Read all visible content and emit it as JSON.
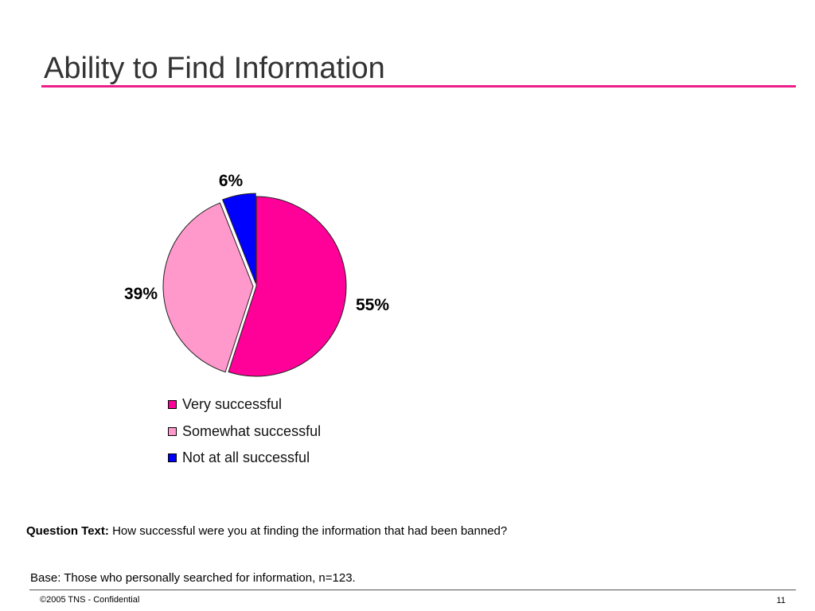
{
  "slide": {
    "title": "Ability to Find Information",
    "accent_color": "#ee1d8c",
    "question_label": "Question Text:",
    "question_text": "How successful were you at finding the information that had been banned?",
    "base_text": "Base: Those who personally searched for information, n=123.",
    "footer_left": "©2005 TNS - Confidential",
    "page_number": "11"
  },
  "chart_data": {
    "type": "pie",
    "title": "",
    "legend_position": "bottom",
    "slices": [
      {
        "name": "Very successful",
        "value": 55,
        "label": "55%",
        "color": "#ff0099"
      },
      {
        "name": "Somewhat successful",
        "value": 39,
        "label": "39%",
        "color": "#ff99cc"
      },
      {
        "name": "Not at all successful",
        "value": 6,
        "label": "6%",
        "color": "#0000ff"
      }
    ]
  }
}
